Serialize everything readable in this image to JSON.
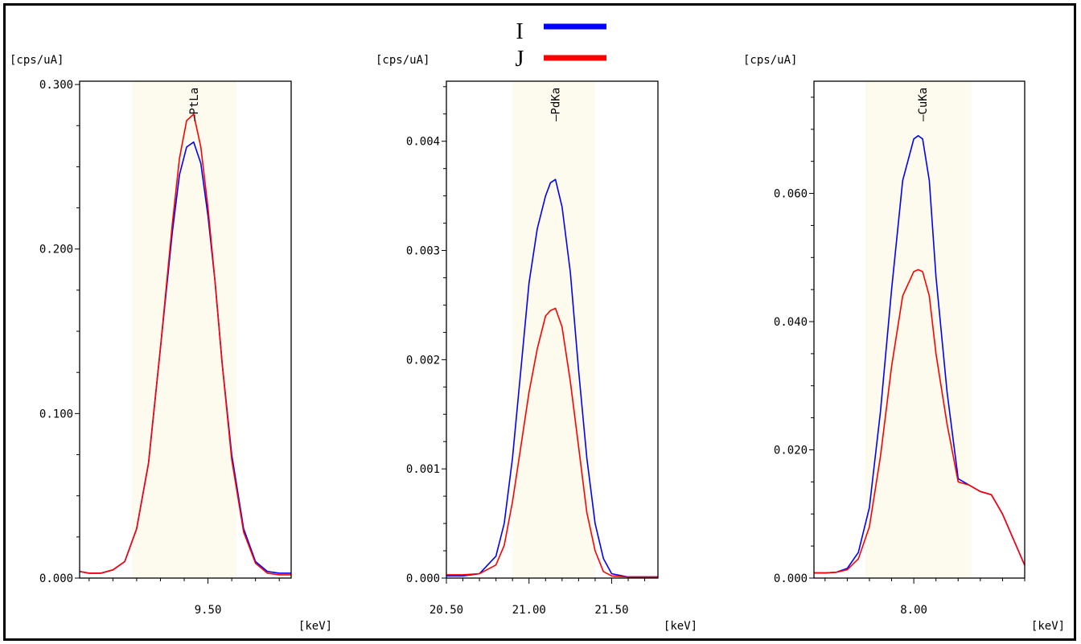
{
  "legend": [
    {
      "name": "I",
      "color": "#0000ff"
    },
    {
      "name": "J",
      "color": "#ff0000"
    }
  ],
  "chart_data": [
    {
      "type": "line",
      "ylabel": "[cps/uA]",
      "xlabel": "[keV]",
      "xlim": [
        8.96,
        9.85
      ],
      "ylim": [
        0,
        0.302
      ],
      "ytick_labels": [
        "0.000",
        "0.100",
        "0.200",
        "0.300"
      ],
      "ytick_values": [
        0,
        0.1,
        0.2,
        0.3
      ],
      "xtick_labels": [
        "9.50"
      ],
      "xtick_values": [
        9.5
      ],
      "roi": [
        9.18,
        9.62
      ],
      "peak_label": "PtLa",
      "peak_x": 9.44,
      "series": [
        {
          "name": "I",
          "color": "#0000ff",
          "x": [
            8.96,
            9.0,
            9.05,
            9.1,
            9.15,
            9.2,
            9.25,
            9.3,
            9.35,
            9.38,
            9.41,
            9.44,
            9.47,
            9.5,
            9.53,
            9.56,
            9.6,
            9.65,
            9.7,
            9.75,
            9.8,
            9.85
          ],
          "y": [
            0.004,
            0.003,
            0.003,
            0.005,
            0.01,
            0.03,
            0.07,
            0.14,
            0.21,
            0.245,
            0.262,
            0.265,
            0.252,
            0.22,
            0.18,
            0.13,
            0.075,
            0.03,
            0.01,
            0.004,
            0.003,
            0.003
          ]
        },
        {
          "name": "J",
          "color": "#ff0000",
          "x": [
            8.96,
            9.0,
            9.05,
            9.1,
            9.15,
            9.2,
            9.25,
            9.3,
            9.35,
            9.38,
            9.41,
            9.44,
            9.47,
            9.5,
            9.53,
            9.56,
            9.6,
            9.65,
            9.7,
            9.75,
            9.8,
            9.85
          ],
          "y": [
            0.004,
            0.003,
            0.003,
            0.005,
            0.01,
            0.03,
            0.07,
            0.14,
            0.215,
            0.255,
            0.278,
            0.282,
            0.262,
            0.225,
            0.18,
            0.13,
            0.072,
            0.028,
            0.009,
            0.003,
            0.002,
            0.002
          ]
        }
      ]
    },
    {
      "type": "line",
      "ylabel": "[cps/uA]",
      "xlabel": "[keV]",
      "xlim": [
        20.5,
        21.78
      ],
      "ylim": [
        0,
        0.00455
      ],
      "ytick_labels": [
        "0.000",
        "0.001",
        "0.002",
        "0.003",
        "0.004"
      ],
      "ytick_values": [
        0,
        0.001,
        0.002,
        0.003,
        0.004
      ],
      "xtick_labels": [
        "20.50",
        "21.00",
        "21.50"
      ],
      "xtick_values": [
        20.5,
        21.0,
        21.5
      ],
      "roi": [
        20.9,
        21.4
      ],
      "peak_label": "PdKa",
      "peak_x": 21.16,
      "series": [
        {
          "name": "I",
          "color": "#0000ff",
          "x": [
            20.5,
            20.6,
            20.7,
            20.8,
            20.85,
            20.9,
            20.95,
            21.0,
            21.05,
            21.1,
            21.13,
            21.16,
            21.2,
            21.25,
            21.3,
            21.35,
            21.4,
            21.45,
            21.5,
            21.6,
            21.7,
            21.78
          ],
          "y": [
            2e-05,
            2e-05,
            4e-05,
            0.0002,
            0.0005,
            0.0011,
            0.0019,
            0.0027,
            0.0032,
            0.0035,
            0.00362,
            0.00365,
            0.0034,
            0.0028,
            0.0019,
            0.0011,
            0.0005,
            0.00018,
            4e-05,
            1e-05,
            1e-05,
            1e-05
          ]
        },
        {
          "name": "J",
          "color": "#ff0000",
          "x": [
            20.5,
            20.6,
            20.7,
            20.8,
            20.85,
            20.9,
            20.95,
            21.0,
            21.05,
            21.1,
            21.13,
            21.16,
            21.2,
            21.25,
            21.3,
            21.35,
            21.4,
            21.45,
            21.5,
            21.6,
            21.7,
            21.78
          ],
          "y": [
            3e-05,
            3e-05,
            4e-05,
            0.00012,
            0.0003,
            0.0007,
            0.0012,
            0.0017,
            0.0021,
            0.0024,
            0.00245,
            0.00247,
            0.0023,
            0.0018,
            0.0012,
            0.0006,
            0.00025,
            6e-05,
            2e-05,
            1e-05,
            1e-05,
            1e-05
          ]
        }
      ]
    },
    {
      "type": "line",
      "ylabel": "[cps/uA]",
      "xlabel": "[keV]",
      "xlim": [
        7.55,
        8.5
      ],
      "ylim": [
        0,
        0.0775
      ],
      "ytick_labels": [
        "0.000",
        "0.020",
        "0.040",
        "0.060"
      ],
      "ytick_values": [
        0,
        0.02,
        0.04,
        0.06
      ],
      "xtick_labels": [
        "8.00"
      ],
      "xtick_values": [
        8.0
      ],
      "roi": [
        7.78,
        8.26
      ],
      "peak_label": "CuKa",
      "peak_x": 8.04,
      "series": [
        {
          "name": "I",
          "color": "#0000ff",
          "x": [
            7.55,
            7.6,
            7.65,
            7.7,
            7.75,
            7.8,
            7.85,
            7.9,
            7.95,
            8.0,
            8.02,
            8.04,
            8.07,
            8.1,
            8.15,
            8.2,
            8.25,
            8.3,
            8.35,
            8.4,
            8.45,
            8.5
          ],
          "y": [
            0.0008,
            0.0008,
            0.0009,
            0.0015,
            0.004,
            0.011,
            0.026,
            0.045,
            0.062,
            0.0685,
            0.069,
            0.0685,
            0.062,
            0.047,
            0.029,
            0.0155,
            0.0145,
            0.0135,
            0.013,
            0.01,
            0.006,
            0.002
          ]
        },
        {
          "name": "J",
          "color": "#ff0000",
          "x": [
            7.55,
            7.6,
            7.65,
            7.7,
            7.75,
            7.8,
            7.85,
            7.9,
            7.95,
            8.0,
            8.02,
            8.04,
            8.07,
            8.1,
            8.15,
            8.2,
            8.25,
            8.3,
            8.35,
            8.4,
            8.45,
            8.5
          ],
          "y": [
            0.0008,
            0.0008,
            0.0009,
            0.0013,
            0.003,
            0.008,
            0.019,
            0.033,
            0.044,
            0.0478,
            0.0481,
            0.0478,
            0.044,
            0.035,
            0.024,
            0.015,
            0.0145,
            0.0135,
            0.013,
            0.01,
            0.006,
            0.002
          ]
        }
      ]
    }
  ]
}
